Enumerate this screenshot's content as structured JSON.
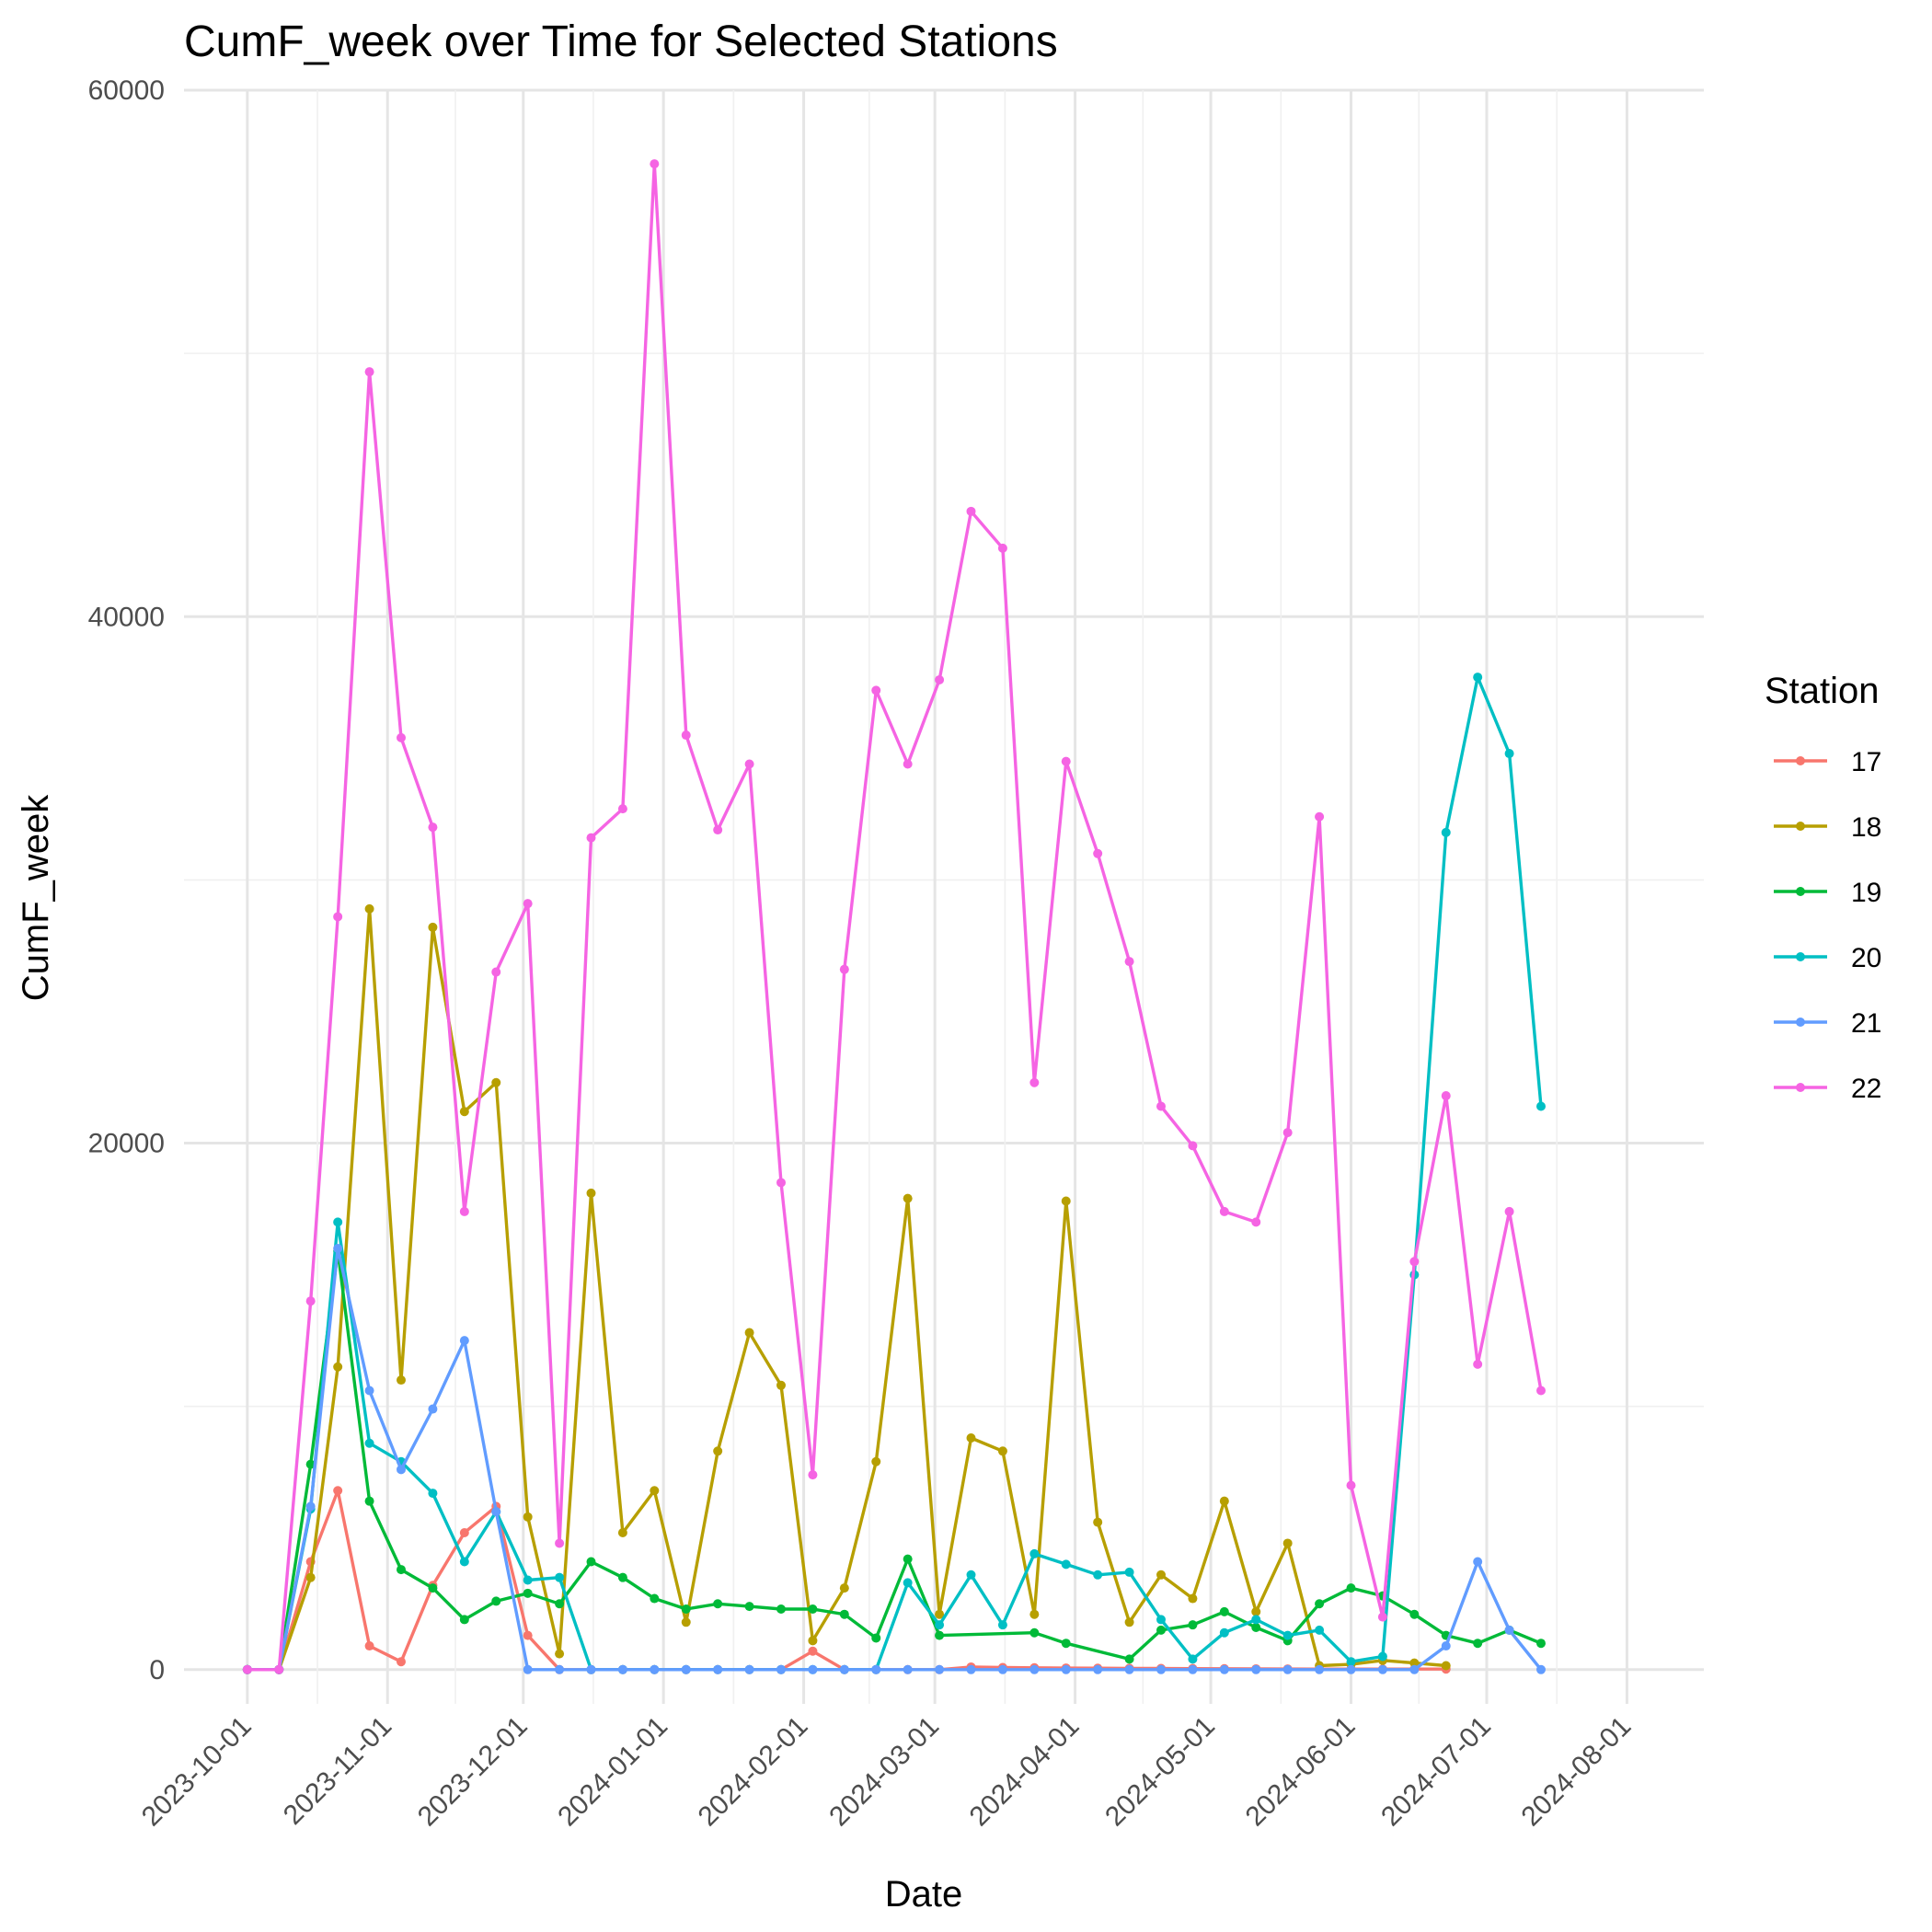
{
  "chart_data": {
    "type": "line",
    "title": "CumF_week over Time for Selected Stations",
    "xlabel": "Date",
    "ylabel": "CumF_week",
    "ylim": [
      -1300,
      60000
    ],
    "xlim": [
      "2023-09-17",
      "2024-08-18"
    ],
    "yticks": [
      0,
      20000,
      40000,
      60000
    ],
    "ytick_labels": [
      "0",
      "20000",
      "40000",
      "60000"
    ],
    "xticks": [
      "2023-10-01",
      "2023-11-01",
      "2023-12-01",
      "2024-01-01",
      "2024-02-01",
      "2024-03-01",
      "2024-04-01",
      "2024-05-01",
      "2024-06-01",
      "2024-07-01",
      "2024-08-01"
    ],
    "xtick_labels": [
      "2023-10-01",
      "2023-11-01",
      "2023-12-01",
      "2024-01-01",
      "2024-02-01",
      "2024-03-01",
      "2024-04-01",
      "2024-05-01",
      "2024-06-01",
      "2024-07-01",
      "2024-08-01"
    ],
    "grid": true,
    "legend_title": "Station",
    "legend_position": "right",
    "series": [
      {
        "name": "17",
        "color": "#F8766D",
        "x": [
          "2023-10-01",
          "2023-10-08",
          "2023-10-15",
          "2023-10-21",
          "2023-10-28",
          "2023-11-04",
          "2023-11-11",
          "2023-11-18",
          "2023-11-25",
          "2023-12-02",
          "2023-12-09",
          "2023-12-16",
          "2023-12-23",
          "2023-12-30",
          "2024-01-06",
          "2024-01-13",
          "2024-01-20",
          "2024-01-27",
          "2024-02-03",
          "2024-02-10",
          "2024-02-17",
          "2024-02-24",
          "2024-03-02",
          "2024-03-09",
          "2024-03-16",
          "2024-03-23",
          "2024-03-30",
          "2024-04-06",
          "2024-04-13",
          "2024-04-20",
          "2024-04-27",
          "2024-05-04",
          "2024-05-11",
          "2024-05-18",
          "2024-05-25",
          "2024-06-01",
          "2024-06-08",
          "2024-06-15",
          "2024-06-22"
        ],
        "y": [
          0,
          0,
          4100,
          6800,
          900,
          300,
          3200,
          5200,
          6200,
          1300,
          0,
          0,
          0,
          0,
          0,
          0,
          0,
          0,
          700,
          0,
          0,
          0,
          0,
          100,
          80,
          70,
          60,
          55,
          50,
          45,
          40,
          35,
          30,
          25,
          20,
          20,
          20,
          20,
          20
        ]
      },
      {
        "name": "18",
        "color": "#B79F00",
        "x": [
          "2023-10-01",
          "2023-10-08",
          "2023-10-15",
          "2023-10-21",
          "2023-10-28",
          "2023-11-04",
          "2023-11-11",
          "2023-11-18",
          "2023-11-25",
          "2023-12-02",
          "2023-12-09",
          "2023-12-16",
          "2023-12-23",
          "2023-12-30",
          "2024-01-06",
          "2024-01-13",
          "2024-01-20",
          "2024-01-27",
          "2024-02-03",
          "2024-02-10",
          "2024-02-17",
          "2024-02-24",
          "2024-03-02",
          "2024-03-09",
          "2024-03-16",
          "2024-03-23",
          "2024-03-30",
          "2024-04-06",
          "2024-04-13",
          "2024-04-20",
          "2024-04-27",
          "2024-05-04",
          "2024-05-11",
          "2024-05-18",
          "2024-05-25",
          "2024-06-01",
          "2024-06-08",
          "2024-06-15",
          "2024-06-22"
        ],
        "y": [
          0,
          0,
          3500,
          11500,
          28900,
          11000,
          28200,
          21200,
          22300,
          5800,
          600,
          18100,
          5200,
          6800,
          1800,
          8300,
          12800,
          10800,
          1100,
          3100,
          7900,
          17900,
          2100,
          8800,
          8300,
          2100,
          17800,
          5600,
          1800,
          3600,
          2700,
          6400,
          2200,
          4800,
          150,
          200,
          350,
          250,
          150
        ]
      },
      {
        "name": "19",
        "color": "#00BA38",
        "x": [
          "2023-10-01",
          "2023-10-08",
          "2023-10-15",
          "2023-10-21",
          "2023-10-28",
          "2023-11-04",
          "2023-11-11",
          "2023-11-18",
          "2023-11-25",
          "2023-12-02",
          "2023-12-09",
          "2023-12-16",
          "2023-12-23",
          "2023-12-30",
          "2024-01-06",
          "2024-01-13",
          "2024-01-20",
          "2024-01-27",
          "2024-02-03",
          "2024-02-10",
          "2024-02-17",
          "2024-02-24",
          "2024-03-02",
          "2024-03-23",
          "2024-03-30",
          "2024-04-13",
          "2024-04-20",
          "2024-04-27",
          "2024-05-04",
          "2024-05-11",
          "2024-05-18",
          "2024-05-25",
          "2024-06-01",
          "2024-06-08",
          "2024-06-15",
          "2024-06-22",
          "2024-06-29",
          "2024-07-06",
          "2024-07-13"
        ],
        "y": [
          0,
          0,
          7800,
          15900,
          6400,
          3800,
          3100,
          1900,
          2600,
          2900,
          2500,
          4100,
          3500,
          2700,
          2300,
          2500,
          2400,
          2300,
          2300,
          2100,
          1200,
          4200,
          1300,
          1400,
          1000,
          400,
          1500,
          1700,
          2200,
          1600,
          1100,
          2500,
          3100,
          2800,
          2100,
          1300,
          1000,
          1500,
          1000
        ]
      },
      {
        "name": "20",
        "color": "#00BFC4",
        "x": [
          "2023-10-01",
          "2023-10-08",
          "2023-10-15",
          "2023-10-21",
          "2023-10-28",
          "2023-11-04",
          "2023-11-11",
          "2023-11-18",
          "2023-11-25",
          "2023-12-02",
          "2023-12-09",
          "2023-12-16",
          "2023-12-23",
          "2023-12-30",
          "2024-01-06",
          "2024-01-13",
          "2024-01-20",
          "2024-01-27",
          "2024-02-03",
          "2024-02-10",
          "2024-02-17",
          "2024-02-24",
          "2024-03-02",
          "2024-03-09",
          "2024-03-16",
          "2024-03-23",
          "2024-03-30",
          "2024-04-06",
          "2024-04-13",
          "2024-04-20",
          "2024-04-27",
          "2024-05-04",
          "2024-05-11",
          "2024-05-18",
          "2024-05-25",
          "2024-06-01",
          "2024-06-08",
          "2024-06-15",
          "2024-06-22",
          "2024-06-29",
          "2024-07-06",
          "2024-07-13"
        ],
        "y": [
          0,
          0,
          6100,
          17000,
          8600,
          7900,
          6700,
          4100,
          6000,
          3400,
          3500,
          0,
          0,
          0,
          0,
          0,
          0,
          0,
          0,
          0,
          0,
          3300,
          1700,
          3600,
          1700,
          4400,
          4000,
          3600,
          3700,
          1900,
          400,
          1400,
          1900,
          1300,
          1500,
          300,
          500,
          15000,
          31800,
          37700,
          34800,
          21400
        ]
      },
      {
        "name": "21",
        "color": "#619CFF",
        "x": [
          "2023-10-01",
          "2023-10-08",
          "2023-10-15",
          "2023-10-21",
          "2023-10-28",
          "2023-11-04",
          "2023-11-11",
          "2023-11-18",
          "2023-11-25",
          "2023-12-02",
          "2023-12-09",
          "2023-12-16",
          "2023-12-23",
          "2023-12-30",
          "2024-01-06",
          "2024-01-13",
          "2024-01-20",
          "2024-01-27",
          "2024-02-03",
          "2024-02-10",
          "2024-02-17",
          "2024-02-24",
          "2024-03-02",
          "2024-03-09",
          "2024-03-16",
          "2024-03-23",
          "2024-03-30",
          "2024-04-06",
          "2024-04-13",
          "2024-04-20",
          "2024-04-27",
          "2024-05-04",
          "2024-05-11",
          "2024-05-18",
          "2024-05-25",
          "2024-06-01",
          "2024-06-08",
          "2024-06-15",
          "2024-06-22",
          "2024-06-29",
          "2024-07-06",
          "2024-07-13"
        ],
        "y": [
          0,
          0,
          6200,
          16000,
          10600,
          7600,
          9900,
          12500,
          6000,
          0,
          0,
          0,
          0,
          0,
          0,
          0,
          0,
          0,
          0,
          0,
          0,
          0,
          0,
          0,
          0,
          0,
          0,
          0,
          0,
          0,
          0,
          0,
          0,
          0,
          0,
          0,
          0,
          0,
          900,
          4100,
          1500,
          0
        ]
      },
      {
        "name": "22",
        "color": "#F564E3",
        "x": [
          "2023-10-01",
          "2023-10-08",
          "2023-10-15",
          "2023-10-21",
          "2023-10-28",
          "2023-11-04",
          "2023-11-11",
          "2023-11-18",
          "2023-11-25",
          "2023-12-02",
          "2023-12-09",
          "2023-12-16",
          "2023-12-23",
          "2023-12-30",
          "2024-01-06",
          "2024-01-13",
          "2024-01-20",
          "2024-01-27",
          "2024-02-03",
          "2024-02-10",
          "2024-02-17",
          "2024-02-24",
          "2024-03-02",
          "2024-03-09",
          "2024-03-16",
          "2024-03-23",
          "2024-03-30",
          "2024-04-06",
          "2024-04-13",
          "2024-04-20",
          "2024-04-27",
          "2024-05-04",
          "2024-05-11",
          "2024-05-18",
          "2024-05-25",
          "2024-06-01",
          "2024-06-08",
          "2024-06-15",
          "2024-06-22",
          "2024-06-29",
          "2024-07-06",
          "2024-07-13"
        ],
        "y": [
          0,
          0,
          14000,
          28600,
          49300,
          35400,
          32000,
          17400,
          26500,
          29100,
          4800,
          31600,
          32700,
          57200,
          35500,
          31900,
          34400,
          18500,
          7400,
          26600,
          37200,
          34400,
          37600,
          44000,
          42600,
          22300,
          34500,
          31000,
          26900,
          21400,
          19900,
          17400,
          17000,
          20400,
          32400,
          7000,
          2000,
          15500,
          21800,
          11600,
          17400,
          10600
        ]
      }
    ]
  }
}
